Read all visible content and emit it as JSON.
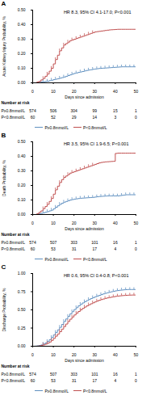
{
  "chart_data": [
    {
      "type": "step",
      "title": "HR 8.3, 95% CI 4.1-17.0; P<0.001",
      "annotations": [
        "A"
      ],
      "xlabel": "Days since admission",
      "ylabel": "Acute Kidney Injury Probability, %",
      "x": [
        0,
        1,
        2,
        3,
        4,
        5,
        6,
        7,
        8,
        9,
        10,
        11,
        12,
        13,
        14,
        15,
        16,
        17,
        18,
        19,
        20,
        21,
        22,
        23,
        24,
        25,
        26,
        27,
        28,
        29,
        30,
        31,
        32,
        33,
        34,
        35,
        36,
        37,
        38,
        39,
        40,
        41,
        42,
        43,
        44,
        45,
        46,
        47,
        48,
        49,
        50
      ],
      "series": [
        {
          "name": "P≥0.8mmol/L",
          "color": "#6090c0",
          "values": [
            0.0,
            0.0,
            0.002,
            0.003,
            0.005,
            0.007,
            0.009,
            0.011,
            0.015,
            0.018,
            0.022,
            0.025,
            0.028,
            0.032,
            0.036,
            0.04,
            0.045,
            0.05,
            0.055,
            0.06,
            0.065,
            0.068,
            0.072,
            0.075,
            0.078,
            0.082,
            0.085,
            0.088,
            0.09,
            0.093,
            0.095,
            0.097,
            0.099,
            0.1,
            0.101,
            0.102,
            0.103,
            0.104,
            0.105,
            0.106,
            0.107,
            0.108,
            0.109,
            0.11,
            0.11,
            0.11,
            0.11,
            0.11,
            0.11,
            0.11,
            0.11
          ],
          "censor_x": [
            5,
            7,
            9,
            11,
            13,
            15,
            17,
            19,
            21,
            23,
            25,
            27,
            29,
            31,
            33,
            35,
            37,
            39,
            41,
            43,
            45,
            47,
            49
          ],
          "censor_y": [
            0.007,
            0.011,
            0.018,
            0.025,
            0.032,
            0.04,
            0.05,
            0.06,
            0.068,
            0.075,
            0.082,
            0.088,
            0.093,
            0.097,
            0.1,
            0.102,
            0.104,
            0.106,
            0.108,
            0.11,
            0.11,
            0.11,
            0.11
          ]
        },
        {
          "name": "P<0.8mmol/L",
          "color": "#c05050",
          "values": [
            0.0,
            0.0,
            0.005,
            0.01,
            0.02,
            0.03,
            0.045,
            0.06,
            0.08,
            0.1,
            0.13,
            0.16,
            0.19,
            0.22,
            0.24,
            0.26,
            0.27,
            0.28,
            0.29,
            0.295,
            0.3,
            0.305,
            0.31,
            0.315,
            0.32,
            0.325,
            0.33,
            0.335,
            0.34,
            0.345,
            0.35,
            0.352,
            0.354,
            0.356,
            0.358,
            0.36,
            0.362,
            0.364,
            0.365,
            0.366,
            0.367,
            0.368,
            0.368,
            0.368,
            0.368,
            0.368,
            0.368,
            0.368,
            0.368,
            0.368,
            0.368
          ],
          "censor_x": [
            5,
            7,
            9,
            11,
            13,
            15,
            17,
            19,
            21,
            23,
            25,
            27,
            29
          ],
          "censor_y": [
            0.03,
            0.06,
            0.1,
            0.16,
            0.22,
            0.26,
            0.28,
            0.295,
            0.305,
            0.315,
            0.325,
            0.335,
            0.345
          ]
        }
      ],
      "xlim": [
        0,
        50
      ],
      "xticks": [
        0,
        10,
        20,
        30,
        40,
        50
      ],
      "ylim": [
        0,
        0.5
      ],
      "yticks": [
        {
          "value": 0,
          "label": "0.00"
        },
        {
          "value": 0.1,
          "label": "0.10"
        },
        {
          "value": 0.2,
          "label": "0.20"
        },
        {
          "value": 0.3,
          "label": "0.30"
        },
        {
          "value": 0.4,
          "label": "0.40"
        },
        {
          "value": 0.5,
          "label": "0.50"
        }
      ],
      "grid": false,
      "legend": "bottom",
      "at_risk": {
        "title": "Number at risk",
        "x": [
          0,
          10,
          20,
          30,
          40,
          50
        ],
        "rows": [
          {
            "name": "P≥0.8mmol/L",
            "values": [
              574,
              506,
              304,
              99,
              15,
              1
            ]
          },
          {
            "name": "P<0.8mmol/L",
            "values": [
              60,
              52,
              29,
              14,
              3,
              0
            ]
          }
        ]
      }
    },
    {
      "type": "step",
      "title": "HR 3.5, 95% CI 1.9-6.5; P<0.001",
      "annotations": [
        "B"
      ],
      "xlabel": "Days since admission",
      "ylabel": "Death Probability, %",
      "x": [
        0,
        1,
        2,
        3,
        4,
        5,
        6,
        7,
        8,
        9,
        10,
        11,
        12,
        13,
        14,
        15,
        16,
        17,
        18,
        19,
        20,
        21,
        22,
        23,
        24,
        25,
        26,
        27,
        28,
        29,
        30,
        31,
        32,
        33,
        34,
        35,
        36,
        37,
        38,
        39,
        40,
        41,
        42,
        43,
        44,
        45,
        46,
        47,
        48,
        49,
        50
      ],
      "series": [
        {
          "name": "P≥0.8mmol/L",
          "color": "#6090c0",
          "values": [
            0.0,
            0.0,
            0.002,
            0.005,
            0.008,
            0.012,
            0.016,
            0.02,
            0.025,
            0.03,
            0.04,
            0.05,
            0.06,
            0.07,
            0.078,
            0.085,
            0.09,
            0.095,
            0.1,
            0.103,
            0.106,
            0.108,
            0.11,
            0.112,
            0.113,
            0.114,
            0.115,
            0.116,
            0.117,
            0.118,
            0.12,
            0.122,
            0.124,
            0.125,
            0.126,
            0.127,
            0.128,
            0.128,
            0.128,
            0.128,
            0.128,
            0.128,
            0.13,
            0.132,
            0.134,
            0.136,
            0.136,
            0.136,
            0.136,
            0.136,
            0.136
          ],
          "censor_x": [
            5,
            7,
            9,
            11,
            13,
            15,
            17,
            19,
            21,
            23,
            25,
            27,
            29,
            31,
            33,
            35,
            37,
            39,
            41,
            43,
            45,
            47,
            49
          ],
          "censor_y": [
            0.012,
            0.02,
            0.03,
            0.05,
            0.07,
            0.085,
            0.095,
            0.103,
            0.108,
            0.112,
            0.114,
            0.116,
            0.118,
            0.122,
            0.125,
            0.127,
            0.128,
            0.128,
            0.128,
            0.132,
            0.136,
            0.136,
            0.136
          ]
        },
        {
          "name": "P<0.8mmol/L",
          "color": "#c05050",
          "values": [
            0.0,
            0.0,
            0.005,
            0.015,
            0.025,
            0.04,
            0.055,
            0.07,
            0.09,
            0.11,
            0.14,
            0.17,
            0.195,
            0.22,
            0.24,
            0.255,
            0.265,
            0.275,
            0.285,
            0.29,
            0.295,
            0.3,
            0.305,
            0.31,
            0.315,
            0.32,
            0.325,
            0.33,
            0.335,
            0.34,
            0.345,
            0.35,
            0.355,
            0.358,
            0.36,
            0.362,
            0.363,
            0.364,
            0.365,
            0.366,
            0.42,
            0.422,
            0.422,
            0.422,
            0.422,
            0.422,
            0.422,
            0.422,
            0.422,
            0.422,
            0.422
          ],
          "censor_x": [
            5,
            7,
            9,
            11,
            13,
            15,
            17,
            19,
            21,
            23,
            25,
            27,
            29
          ],
          "censor_y": [
            0.04,
            0.07,
            0.11,
            0.17,
            0.22,
            0.255,
            0.275,
            0.29,
            0.3,
            0.31,
            0.32,
            0.33,
            0.34
          ]
        }
      ],
      "xlim": [
        0,
        50
      ],
      "xticks": [
        0,
        10,
        20,
        30,
        40,
        50
      ],
      "ylim": [
        0,
        0.5
      ],
      "yticks": [
        {
          "value": 0,
          "label": "0.00"
        },
        {
          "value": 0.1,
          "label": "0.10"
        },
        {
          "value": 0.2,
          "label": "0.20"
        },
        {
          "value": 0.3,
          "label": "0.30"
        },
        {
          "value": 0.4,
          "label": "0.40"
        },
        {
          "value": 0.5,
          "label": "0.50"
        }
      ],
      "grid": false,
      "legend": "bottom",
      "at_risk": {
        "title": "Number at risk",
        "x": [
          0,
          10,
          20,
          30,
          40,
          50
        ],
        "rows": [
          {
            "name": "P≥0.8mmol/L",
            "values": [
              574,
              507,
              303,
              101,
              16,
              1
            ]
          },
          {
            "name": "P<0.8mmol/L",
            "values": [
              60,
              53,
              31,
              17,
              4,
              0
            ]
          }
        ]
      }
    },
    {
      "type": "step",
      "title": "HR 0.6, 95% CI 0.4-0.8; P<0.001",
      "annotations": [
        "C"
      ],
      "xlabel": "Days since admission",
      "ylabel": "Discharge Probability, %",
      "x": [
        0,
        1,
        2,
        3,
        4,
        5,
        6,
        7,
        8,
        9,
        10,
        11,
        12,
        13,
        14,
        15,
        16,
        17,
        18,
        19,
        20,
        21,
        22,
        23,
        24,
        25,
        26,
        27,
        28,
        29,
        30,
        31,
        32,
        33,
        34,
        35,
        36,
        37,
        38,
        39,
        40,
        41,
        42,
        43,
        44,
        45,
        46,
        47,
        48,
        49,
        50
      ],
      "series": [
        {
          "name": "P≥0.8mmol/L",
          "color": "#6090c0",
          "values": [
            0.0,
            0.002,
            0.005,
            0.01,
            0.018,
            0.03,
            0.045,
            0.065,
            0.09,
            0.12,
            0.155,
            0.19,
            0.225,
            0.26,
            0.3,
            0.34,
            0.375,
            0.41,
            0.445,
            0.475,
            0.505,
            0.53,
            0.555,
            0.575,
            0.595,
            0.612,
            0.628,
            0.642,
            0.656,
            0.668,
            0.68,
            0.69,
            0.7,
            0.71,
            0.72,
            0.728,
            0.736,
            0.743,
            0.75,
            0.756,
            0.762,
            0.766,
            0.77,
            0.773,
            0.776,
            0.778,
            0.78,
            0.78,
            0.78,
            0.78,
            0.78
          ],
          "censor_x": [
            5,
            7,
            9,
            11,
            13,
            15,
            17,
            19,
            21,
            23,
            25,
            27,
            29,
            31,
            33,
            35,
            37,
            39,
            41,
            43,
            45,
            47,
            49
          ],
          "censor_y": [
            0.03,
            0.065,
            0.12,
            0.19,
            0.26,
            0.34,
            0.41,
            0.475,
            0.53,
            0.575,
            0.612,
            0.642,
            0.668,
            0.69,
            0.71,
            0.728,
            0.743,
            0.756,
            0.766,
            0.773,
            0.778,
            0.78,
            0.78
          ]
        },
        {
          "name": "P<0.8mmol/L",
          "color": "#c05050",
          "values": [
            0.0,
            0.0,
            0.002,
            0.005,
            0.01,
            0.018,
            0.028,
            0.04,
            0.058,
            0.08,
            0.108,
            0.138,
            0.168,
            0.2,
            0.235,
            0.27,
            0.305,
            0.34,
            0.372,
            0.402,
            0.43,
            0.455,
            0.478,
            0.5,
            0.52,
            0.538,
            0.555,
            0.57,
            0.584,
            0.597,
            0.61,
            0.622,
            0.633,
            0.642,
            0.65,
            0.658,
            0.665,
            0.67,
            0.676,
            0.681,
            0.686,
            0.69,
            0.693,
            0.696,
            0.698,
            0.7,
            0.702,
            0.703,
            0.704,
            0.704,
            0.704
          ],
          "censor_x": [
            5,
            7,
            9,
            11,
            13,
            15,
            17,
            19,
            21,
            23,
            25,
            27,
            29,
            31,
            33,
            35,
            37,
            39,
            41,
            43,
            45,
            47,
            49
          ],
          "censor_y": [
            0.018,
            0.04,
            0.08,
            0.138,
            0.2,
            0.27,
            0.34,
            0.402,
            0.455,
            0.5,
            0.538,
            0.57,
            0.597,
            0.622,
            0.642,
            0.658,
            0.67,
            0.681,
            0.69,
            0.696,
            0.7,
            0.703,
            0.704
          ]
        }
      ],
      "xlim": [
        0,
        50
      ],
      "xticks": [
        0,
        10,
        20,
        30,
        40,
        50
      ],
      "ylim": [
        0,
        1.0
      ],
      "yticks": [
        {
          "value": 0,
          "label": "0.00"
        },
        {
          "value": 0.25,
          "label": "0.25"
        },
        {
          "value": 0.5,
          "label": "0.50"
        },
        {
          "value": 0.75,
          "label": "0.75"
        },
        {
          "value": 1.0,
          "label": "1.00"
        }
      ],
      "grid": false,
      "legend": "bottom",
      "at_risk": {
        "title": "Number at risk",
        "x": [
          0,
          10,
          20,
          30,
          40,
          50
        ],
        "rows": [
          {
            "name": "P≥0.8mmol/L",
            "values": [
              574,
              507,
              303,
              101,
              16,
              1
            ]
          },
          {
            "name": "P<0.8mmol/L",
            "values": [
              60,
              53,
              31,
              17,
              4,
              0
            ]
          }
        ]
      }
    }
  ]
}
